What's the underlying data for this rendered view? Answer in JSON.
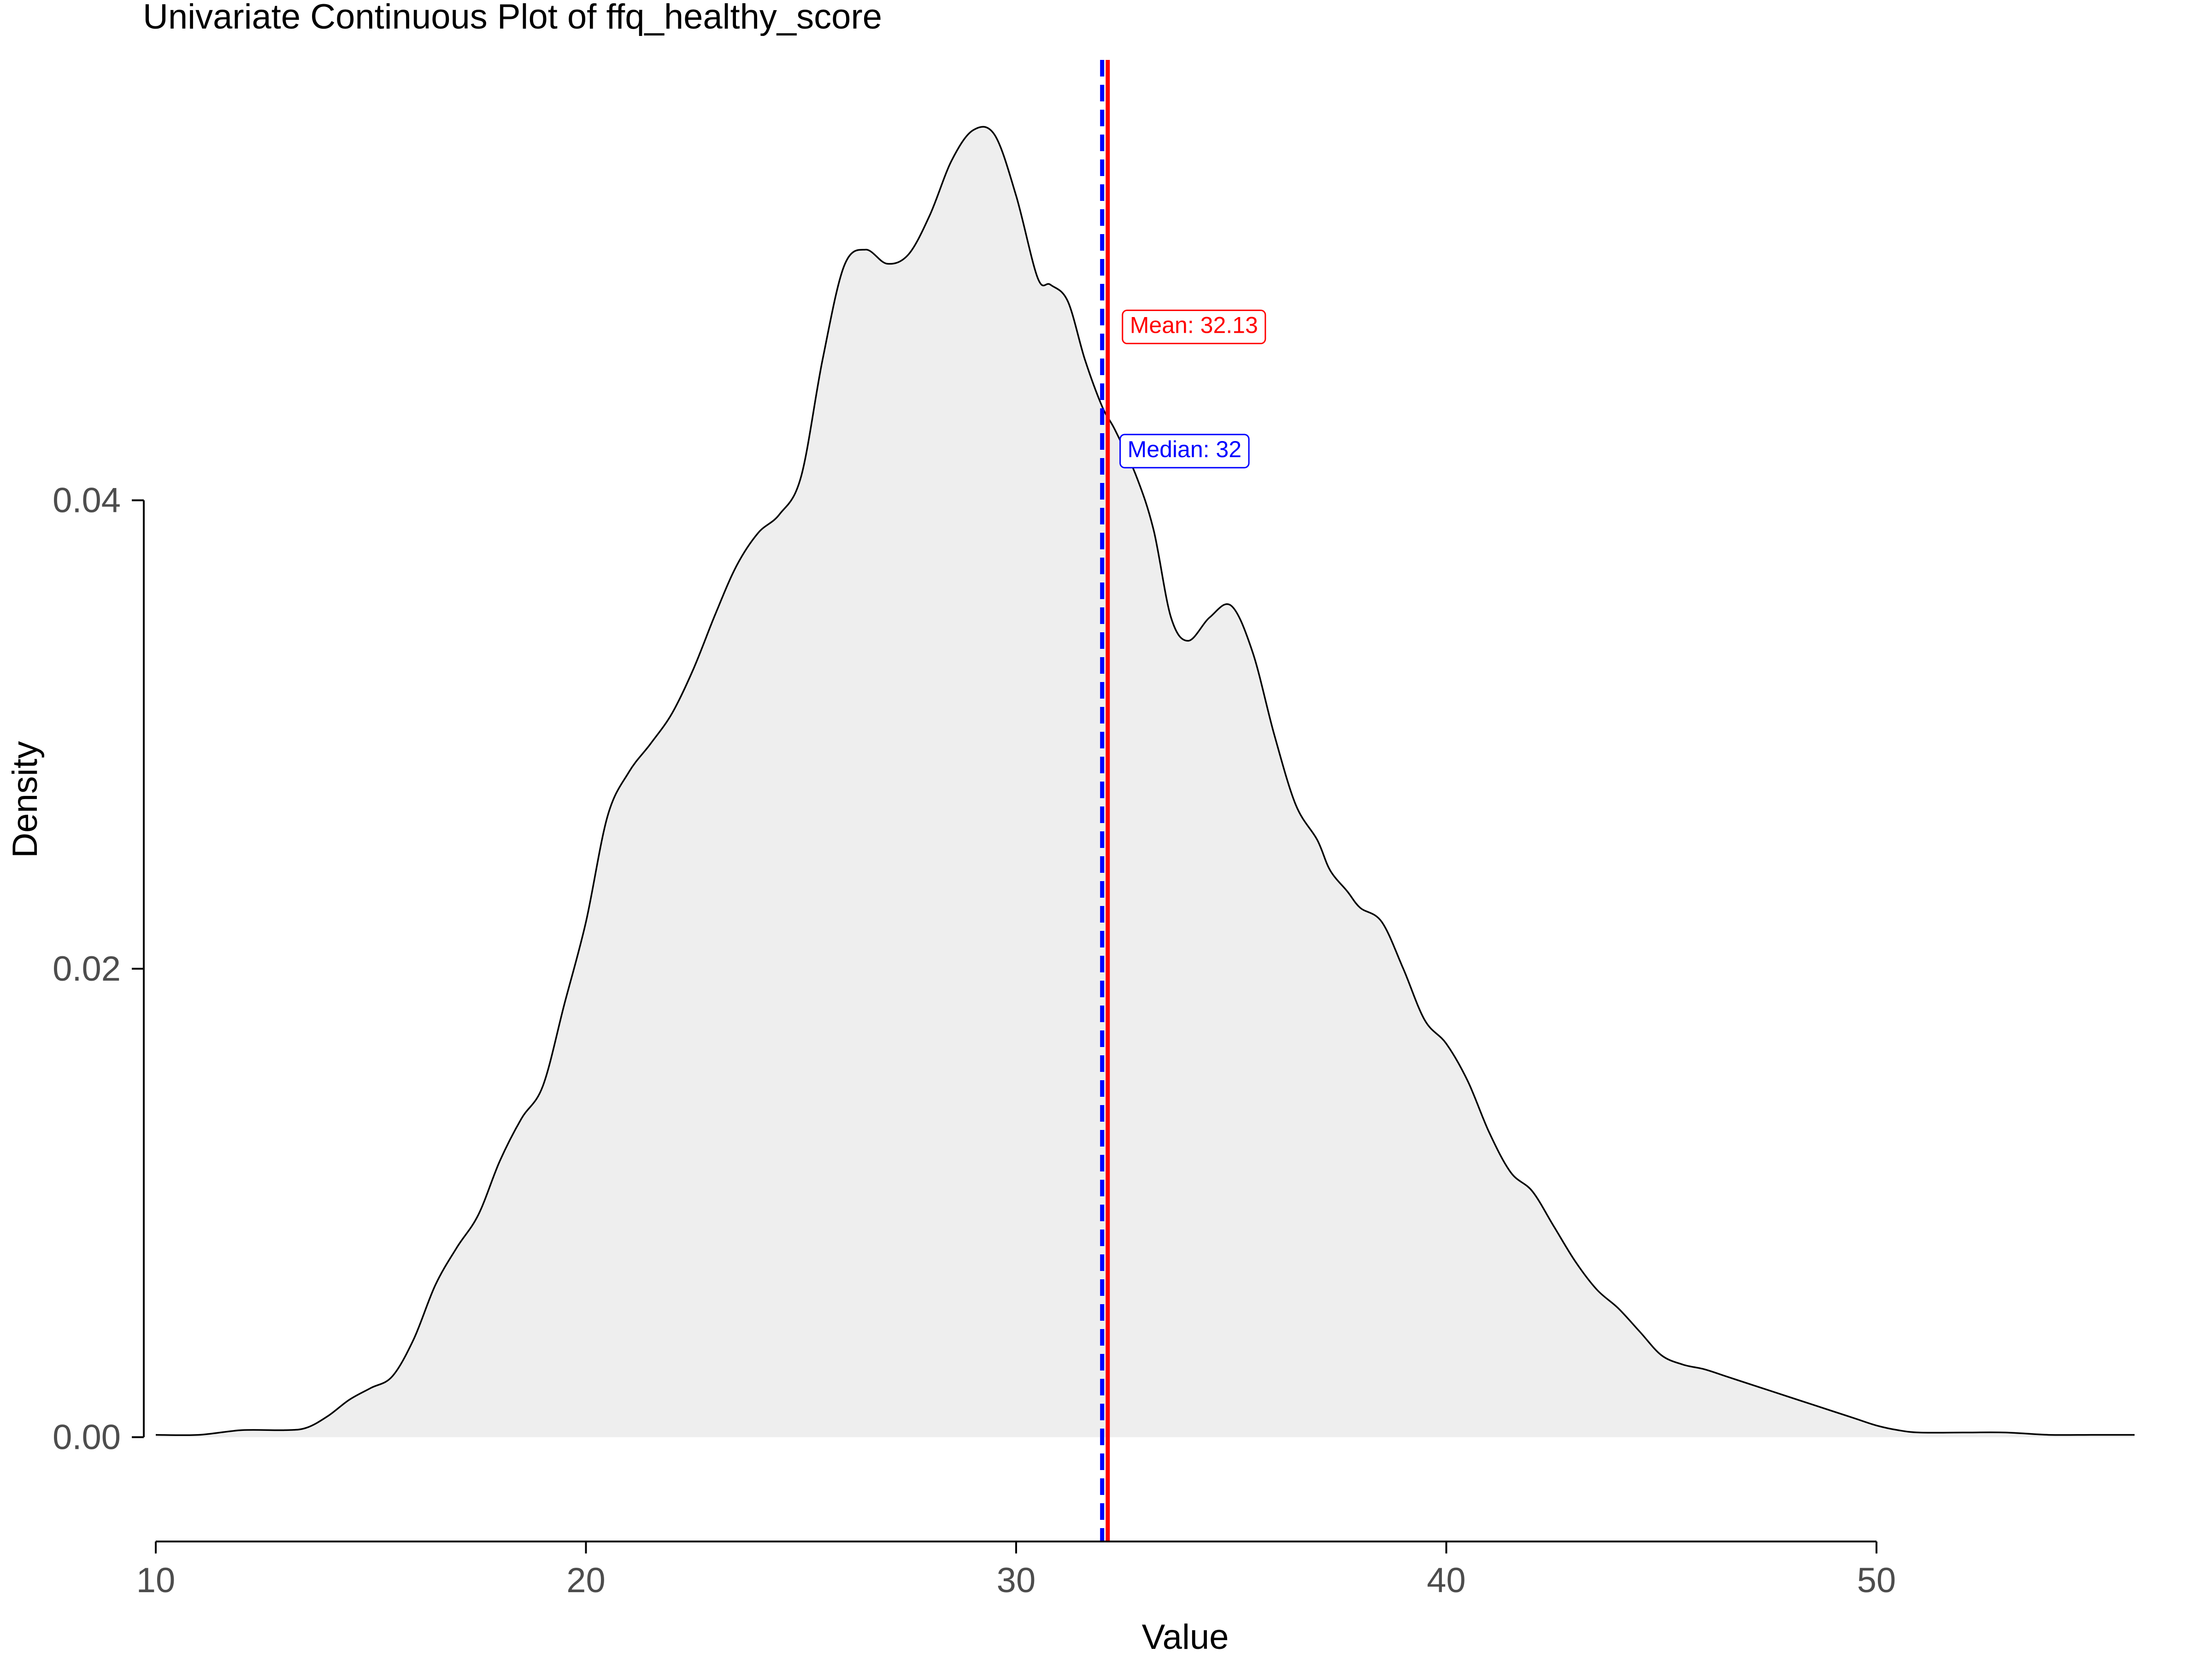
{
  "chart_data": {
    "type": "area",
    "title": "Univariate Continuous Plot of ffq_healthy_score",
    "xlabel": "Value",
    "ylabel": "Density",
    "xlim": [
      9.7,
      56.3
    ],
    "ylim": [
      -0.0016,
      0.0588
    ],
    "x_ticks": [
      10,
      20,
      30,
      40,
      50
    ],
    "x_tick_labels": [
      "10",
      "20",
      "30",
      "40",
      "50"
    ],
    "y_ticks": [
      0.0,
      0.02,
      0.04
    ],
    "y_tick_labels": [
      "0.00",
      "0.02",
      "0.04"
    ],
    "grid": false,
    "legend": "none",
    "fill_color": "#eeeeee",
    "line_color": "#000000",
    "series": [
      {
        "x": [
          10.0,
          11.0,
          12.0,
          13.0,
          13.5,
          14.0,
          14.5,
          15.0,
          15.5,
          16.0,
          16.5,
          17.0,
          17.5,
          18.0,
          18.5,
          19.0,
          19.5,
          20.0,
          20.5,
          21.0,
          21.5,
          22.0,
          22.5,
          23.0,
          23.5,
          24.0,
          24.5,
          25.0,
          25.5,
          26.0,
          26.5,
          27.0,
          27.5,
          28.0,
          28.5,
          29.0,
          29.5,
          30.0,
          30.5,
          30.8,
          31.2,
          31.6,
          32.0,
          32.3,
          32.8,
          33.2,
          33.6,
          34.0,
          34.5,
          35.0,
          35.5,
          36.0,
          36.5,
          37.0,
          37.3,
          37.7,
          38.0,
          38.5,
          39.0,
          39.5,
          40.0,
          40.5,
          41.0,
          41.5,
          42.0,
          42.5,
          43.0,
          43.5,
          44.0,
          44.5,
          45.0,
          45.5,
          46.0,
          46.5,
          47.0,
          47.5,
          48.0,
          48.5,
          49.0,
          49.5,
          50.0,
          50.5,
          51.0,
          52.0,
          53.0,
          54.0,
          55.0,
          56.0
        ],
        "y": [
          0.0001,
          0.0001,
          0.0003,
          0.0003,
          0.0004,
          0.0009,
          0.0016,
          0.0021,
          0.0026,
          0.0042,
          0.0065,
          0.0081,
          0.0095,
          0.0118,
          0.0136,
          0.015,
          0.0185,
          0.022,
          0.0265,
          0.0284,
          0.0296,
          0.0309,
          0.0328,
          0.0351,
          0.0372,
          0.0386,
          0.0394,
          0.041,
          0.046,
          0.05,
          0.0507,
          0.0501,
          0.0505,
          0.0522,
          0.0545,
          0.0558,
          0.0556,
          0.053,
          0.0495,
          0.0492,
          0.0485,
          0.046,
          0.044,
          0.043,
          0.041,
          0.0387,
          0.035,
          0.034,
          0.035,
          0.0355,
          0.0335,
          0.03,
          0.027,
          0.0255,
          0.0242,
          0.0233,
          0.0226,
          0.022,
          0.02,
          0.0178,
          0.0168,
          0.0152,
          0.013,
          0.0113,
          0.0105,
          0.009,
          0.0075,
          0.0063,
          0.0055,
          0.0045,
          0.0035,
          0.0031,
          0.0029,
          0.0026,
          0.0023,
          0.002,
          0.0017,
          0.0014,
          0.0011,
          0.0008,
          0.0005,
          0.0003,
          0.0002,
          0.0002,
          0.0002,
          0.0001,
          0.0001,
          0.0001
        ]
      }
    ],
    "annotations": [
      {
        "kind": "vline",
        "name": "mean",
        "x": 32.13,
        "color": "#ff0000",
        "style": "solid",
        "label": "Mean: 32.13",
        "label_y": 0.0474
      },
      {
        "kind": "vline",
        "name": "median",
        "x": 32.0,
        "color": "#0000ff",
        "style": "dashed",
        "label": "Median: 32",
        "label_y": 0.0421
      }
    ]
  }
}
